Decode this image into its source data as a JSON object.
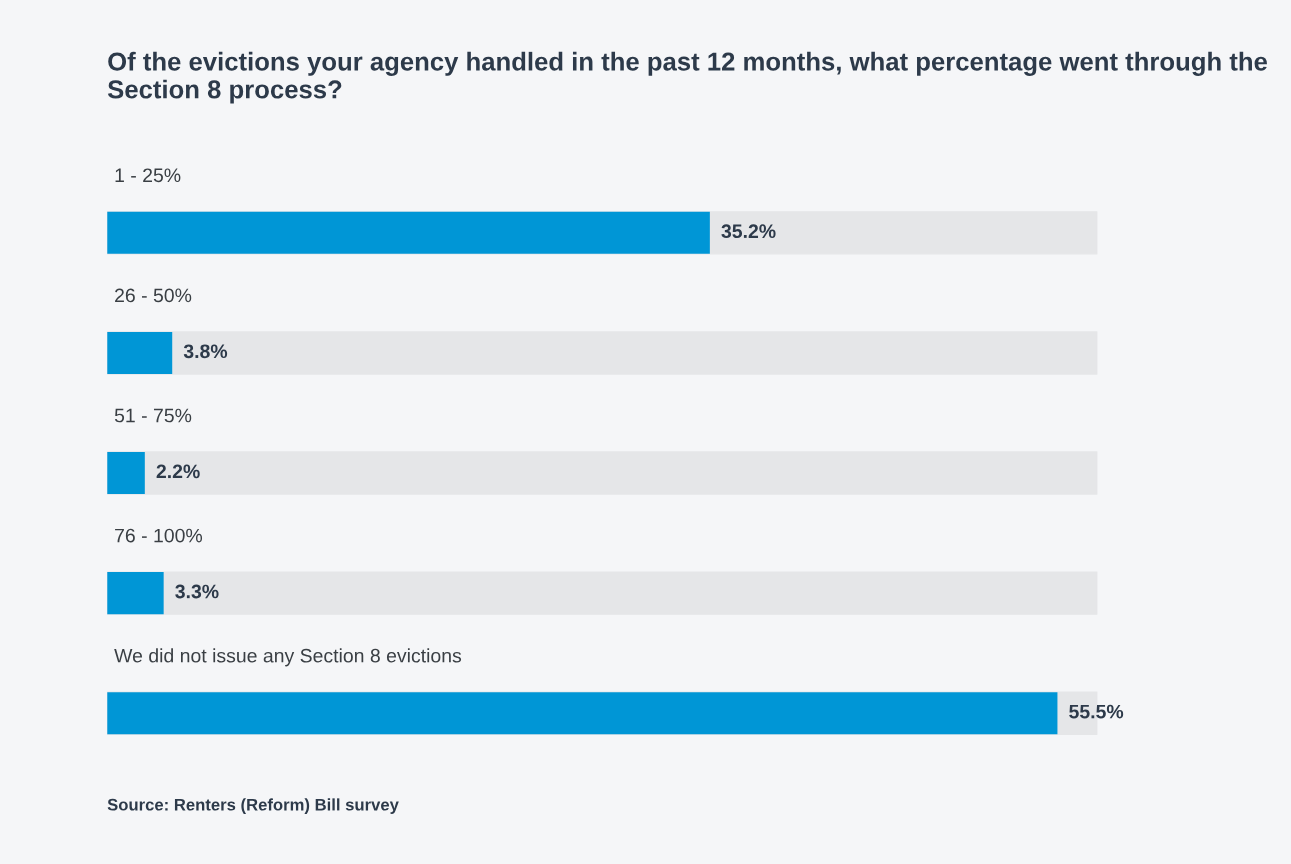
{
  "chart_data": {
    "type": "bar",
    "orientation": "horizontal",
    "title": "Of the evictions your agency handled in the past 12 months, what percentage went through the Section 8 process?",
    "categories": [
      "1 - 25%",
      "26 - 50%",
      "51 - 75%",
      "76 - 100%",
      "We did not issue any Section 8 evictions"
    ],
    "values": [
      35.2,
      3.8,
      2.2,
      3.3,
      55.5
    ],
    "value_labels": [
      "35.2%",
      "3.8%",
      "2.2%",
      "3.3%",
      "55.5%"
    ],
    "color": "#0096d6",
    "annotations": [
      "Source: Renters (Reform) Bill survey"
    ]
  }
}
